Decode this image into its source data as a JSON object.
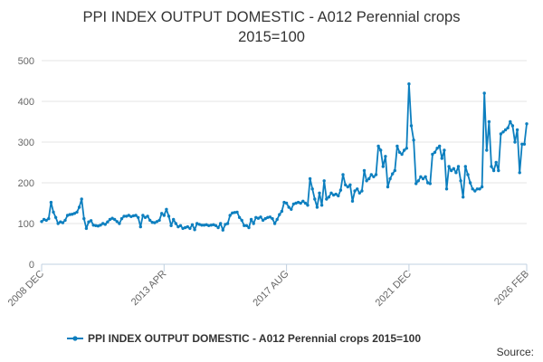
{
  "title_line1": "PPI INDEX OUTPUT DOMESTIC - A012 Perennial crops",
  "title_line2": "2015=100",
  "source": "Source:",
  "colors": {
    "series": "#0d7fbf",
    "grid": "#e6e6e6",
    "axis": "#c0d0e0",
    "text": "#666666"
  },
  "chart_data": {
    "type": "line",
    "grid": true,
    "legend_position": "bottom-center",
    "ylim": [
      0,
      500
    ],
    "yticks": [
      0,
      100,
      200,
      300,
      400,
      500
    ],
    "xlim": [
      "2008-12",
      "2026-02"
    ],
    "xticks": [
      "2008 DEC",
      "2013 APR",
      "2017 AUG",
      "2021 DEC",
      "2026 FEB"
    ],
    "series": [
      {
        "name": "PPI INDEX OUTPUT DOMESTIC - A012 Perennial crops 2015=100",
        "points": [
          [
            "2008-12",
            105
          ],
          [
            "2009-01",
            110
          ],
          [
            "2009-02",
            108
          ],
          [
            "2009-03",
            112
          ],
          [
            "2009-04",
            152
          ],
          [
            "2009-05",
            128
          ],
          [
            "2009-06",
            115
          ],
          [
            "2009-07",
            100
          ],
          [
            "2009-08",
            104
          ],
          [
            "2009-09",
            102
          ],
          [
            "2009-10",
            108
          ],
          [
            "2009-11",
            120
          ],
          [
            "2009-12",
            122
          ],
          [
            "2010-01",
            123
          ],
          [
            "2010-02",
            125
          ],
          [
            "2010-03",
            128
          ],
          [
            "2010-04",
            140
          ],
          [
            "2010-05",
            160
          ],
          [
            "2010-06",
            112
          ],
          [
            "2010-07",
            88
          ],
          [
            "2010-08",
            104
          ],
          [
            "2010-09",
            107
          ],
          [
            "2010-10",
            96
          ],
          [
            "2010-11",
            95
          ],
          [
            "2010-12",
            94
          ],
          [
            "2011-01",
            96
          ],
          [
            "2011-02",
            100
          ],
          [
            "2011-03",
            98
          ],
          [
            "2011-04",
            104
          ],
          [
            "2011-05",
            110
          ],
          [
            "2011-06",
            113
          ],
          [
            "2011-07",
            110
          ],
          [
            "2011-08",
            105
          ],
          [
            "2011-09",
            100
          ],
          [
            "2011-10",
            112
          ],
          [
            "2011-11",
            118
          ],
          [
            "2011-12",
            118
          ],
          [
            "2012-01",
            120
          ],
          [
            "2012-02",
            117
          ],
          [
            "2012-03",
            119
          ],
          [
            "2012-04",
            120
          ],
          [
            "2012-05",
            115
          ],
          [
            "2012-06",
            92
          ],
          [
            "2012-07",
            120
          ],
          [
            "2012-08",
            115
          ],
          [
            "2012-09",
            118
          ],
          [
            "2012-10",
            108
          ],
          [
            "2012-11",
            103
          ],
          [
            "2012-12",
            102
          ],
          [
            "2013-01",
            105
          ],
          [
            "2013-02",
            108
          ],
          [
            "2013-03",
            125
          ],
          [
            "2013-04",
            120
          ],
          [
            "2013-05",
            135
          ],
          [
            "2013-06",
            118
          ],
          [
            "2013-07",
            95
          ],
          [
            "2013-08",
            110
          ],
          [
            "2013-09",
            100
          ],
          [
            "2013-10",
            92
          ],
          [
            "2013-11",
            95
          ],
          [
            "2013-12",
            88
          ],
          [
            "2014-01",
            90
          ],
          [
            "2014-02",
            92
          ],
          [
            "2014-03",
            88
          ],
          [
            "2014-04",
            97
          ],
          [
            "2014-05",
            85
          ],
          [
            "2014-06",
            100
          ],
          [
            "2014-07",
            98
          ],
          [
            "2014-08",
            96
          ],
          [
            "2014-09",
            96
          ],
          [
            "2014-10",
            97
          ],
          [
            "2014-11",
            95
          ],
          [
            "2014-12",
            96
          ],
          [
            "2015-01",
            97
          ],
          [
            "2015-02",
            95
          ],
          [
            "2015-03",
            90
          ],
          [
            "2015-04",
            100
          ],
          [
            "2015-05",
            84
          ],
          [
            "2015-06",
            98
          ],
          [
            "2015-07",
            100
          ],
          [
            "2015-08",
            120
          ],
          [
            "2015-09",
            126
          ],
          [
            "2015-10",
            127
          ],
          [
            "2015-11",
            128
          ],
          [
            "2015-12",
            115
          ],
          [
            "2016-01",
            108
          ],
          [
            "2016-02",
            95
          ],
          [
            "2016-03",
            95
          ],
          [
            "2016-04",
            90
          ],
          [
            "2016-05",
            110
          ],
          [
            "2016-06",
            100
          ],
          [
            "2016-07",
            115
          ],
          [
            "2016-08",
            113
          ],
          [
            "2016-09",
            116
          ],
          [
            "2016-10",
            108
          ],
          [
            "2016-11",
            112
          ],
          [
            "2016-12",
            115
          ],
          [
            "2017-01",
            116
          ],
          [
            "2017-02",
            112
          ],
          [
            "2017-03",
            100
          ],
          [
            "2017-04",
            110
          ],
          [
            "2017-05",
            122
          ],
          [
            "2017-06",
            130
          ],
          [
            "2017-07",
            152
          ],
          [
            "2017-08",
            150
          ],
          [
            "2017-09",
            140
          ],
          [
            "2017-10",
            135
          ],
          [
            "2017-11",
            148
          ],
          [
            "2017-12",
            150
          ],
          [
            "2018-01",
            152
          ],
          [
            "2018-02",
            150
          ],
          [
            "2018-03",
            155
          ],
          [
            "2018-04",
            150
          ],
          [
            "2018-05",
            145
          ],
          [
            "2018-06",
            210
          ],
          [
            "2018-07",
            185
          ],
          [
            "2018-08",
            160
          ],
          [
            "2018-09",
            140
          ],
          [
            "2018-10",
            175
          ],
          [
            "2018-11",
            145
          ],
          [
            "2018-12",
            205
          ],
          [
            "2019-01",
            160
          ],
          [
            "2019-02",
            165
          ],
          [
            "2019-03",
            175
          ],
          [
            "2019-04",
            170
          ],
          [
            "2019-05",
            172
          ],
          [
            "2019-06",
            168
          ],
          [
            "2019-07",
            182
          ],
          [
            "2019-08",
            220
          ],
          [
            "2019-09",
            195
          ],
          [
            "2019-10",
            190
          ],
          [
            "2019-11",
            195
          ],
          [
            "2019-12",
            155
          ],
          [
            "2020-01",
            180
          ],
          [
            "2020-02",
            185
          ],
          [
            "2020-03",
            175
          ],
          [
            "2020-04",
            180
          ],
          [
            "2020-05",
            230
          ],
          [
            "2020-06",
            205
          ],
          [
            "2020-07",
            210
          ],
          [
            "2020-08",
            220
          ],
          [
            "2020-09",
            215
          ],
          [
            "2020-10",
            220
          ],
          [
            "2020-11",
            290
          ],
          [
            "2020-12",
            280
          ],
          [
            "2021-01",
            240
          ],
          [
            "2021-02",
            265
          ],
          [
            "2021-03",
            190
          ],
          [
            "2021-04",
            210
          ],
          [
            "2021-05",
            222
          ],
          [
            "2021-06",
            230
          ],
          [
            "2021-07",
            290
          ],
          [
            "2021-08",
            275
          ],
          [
            "2021-09",
            270
          ],
          [
            "2021-10",
            280
          ],
          [
            "2021-11",
            285
          ],
          [
            "2021-12",
            443
          ],
          [
            "2022-01",
            340
          ],
          [
            "2022-02",
            305
          ],
          [
            "2022-03",
            198
          ],
          [
            "2022-04",
            205
          ],
          [
            "2022-05",
            215
          ],
          [
            "2022-06",
            210
          ],
          [
            "2022-07",
            215
          ],
          [
            "2022-08",
            200
          ],
          [
            "2022-09",
            198
          ],
          [
            "2022-10",
            270
          ],
          [
            "2022-11",
            275
          ],
          [
            "2022-12",
            285
          ],
          [
            "2023-01",
            290
          ],
          [
            "2023-02",
            260
          ],
          [
            "2023-03",
            280
          ],
          [
            "2023-04",
            185
          ],
          [
            "2023-05",
            240
          ],
          [
            "2023-06",
            230
          ],
          [
            "2023-07",
            235
          ],
          [
            "2023-08",
            225
          ],
          [
            "2023-09",
            240
          ],
          [
            "2023-10",
            205
          ],
          [
            "2023-11",
            165
          ],
          [
            "2023-12",
            240
          ],
          [
            "2024-01",
            220
          ],
          [
            "2024-02",
            200
          ],
          [
            "2024-03",
            185
          ],
          [
            "2024-04",
            180
          ],
          [
            "2024-05",
            185
          ],
          [
            "2024-06",
            185
          ],
          [
            "2024-07",
            190
          ],
          [
            "2024-08",
            420
          ],
          [
            "2024-09",
            280
          ],
          [
            "2024-10",
            350
          ],
          [
            "2024-11",
            240
          ],
          [
            "2024-12",
            230
          ],
          [
            "2025-01",
            250
          ],
          [
            "2025-02",
            230
          ],
          [
            "2025-03",
            320
          ],
          [
            "2025-04",
            325
          ],
          [
            "2025-05",
            330
          ],
          [
            "2025-06",
            335
          ],
          [
            "2025-07",
            350
          ],
          [
            "2025-08",
            340
          ],
          [
            "2025-09",
            300
          ],
          [
            "2025-10",
            330
          ],
          [
            "2025-11",
            225
          ],
          [
            "2025-12",
            295
          ],
          [
            "2026-01",
            295
          ],
          [
            "2026-02",
            345
          ]
        ]
      }
    ]
  }
}
